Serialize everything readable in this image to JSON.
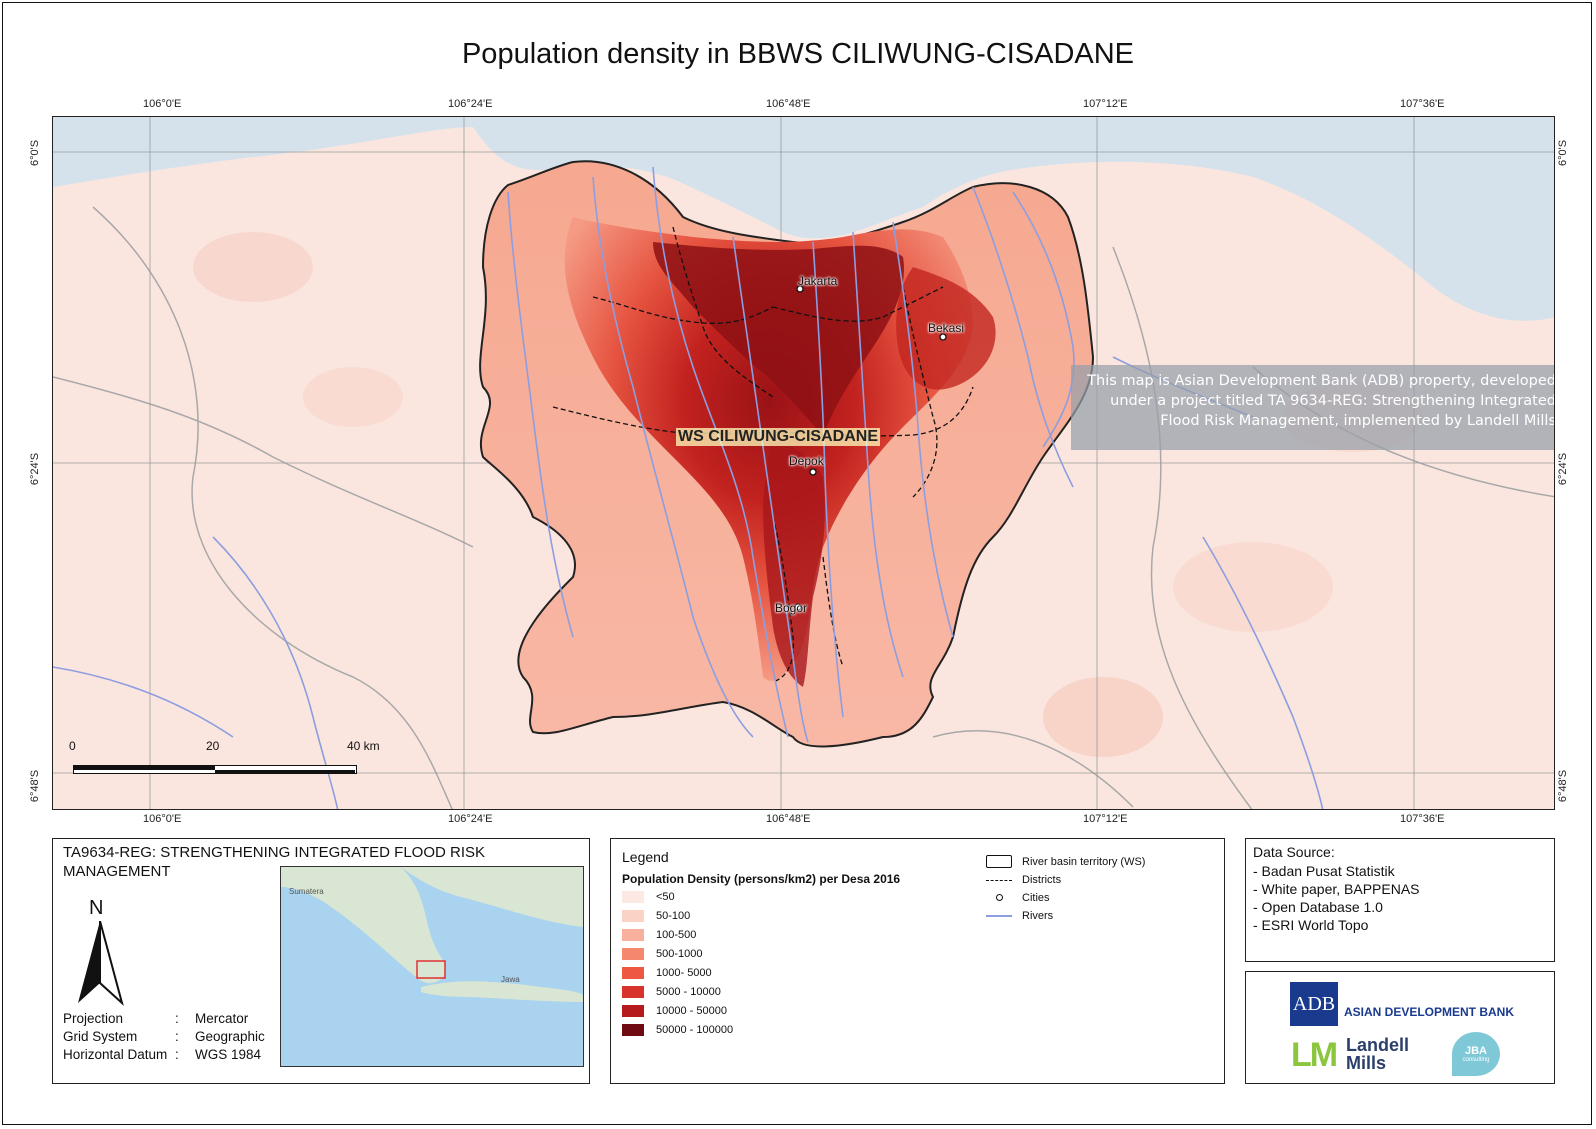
{
  "title": "Population density in BBWS CILIWUNG-CISADANE",
  "map": {
    "lon_ticks": [
      "106°0'E",
      "106°24'E",
      "106°48'E",
      "107°12'E",
      "107°36'E"
    ],
    "lat_ticks": [
      "6°0'S",
      "6°24'S",
      "6°48'S"
    ],
    "cities": [
      "Jakarta",
      "Bekasi",
      "Depok",
      "Bogor"
    ],
    "basin_label": "WS CILIWUNG-CISADANE",
    "notice": [
      "This map is Asian Development Bank (ADB) property, developed",
      "under a project titled TA 9634-REG: Strengthening Integrated",
      "Flood Risk Management, implemented by Landell Mills"
    ],
    "scale_labels": [
      "0",
      "20",
      "40 km"
    ]
  },
  "info_panel": {
    "title": "TA9634-REG: STRENGTHENING INTEGRATED FLOOD RISK MANAGEMENT",
    "north_label": "N",
    "projection": [
      {
        "key": "Projection",
        "value": "Mercator"
      },
      {
        "key": "Grid System",
        "value": "Geographic"
      },
      {
        "key": "Horizontal Datum",
        "value": "WGS 1984"
      }
    ],
    "inset_labels": [
      "Sumatera",
      "Jawa"
    ]
  },
  "legend": {
    "title": "Legend",
    "subtitle": "Population Density (persons/km2) per Desa 2016",
    "classes": [
      {
        "label": "<50",
        "color": "#fde9e4"
      },
      {
        "label": "50-100",
        "color": "#fbd3c6"
      },
      {
        "label": "100-500",
        "color": "#f7b09c"
      },
      {
        "label": "500-1000",
        "color": "#f4876c"
      },
      {
        "label": "1000- 5000",
        "color": "#ee5842"
      },
      {
        "label": "5000 - 10000",
        "color": "#d8332b"
      },
      {
        "label": "10000 - 50000",
        "color": "#b51a1c"
      },
      {
        "label": "50000 - 100000",
        "color": "#6d0b10"
      }
    ],
    "symbols": [
      "River basin territory (WS)",
      "Districts",
      "Cities",
      "Rivers"
    ]
  },
  "data_source": {
    "title": "Data Source:",
    "items": [
      "- Badan Pusat Statistik",
      "- White paper, BAPPENAS",
      "- Open Database 1.0",
      "- ESRI World Topo"
    ]
  },
  "logos": {
    "adb": "ADB",
    "adb_name": "ASIAN DEVELOPMENT BANK",
    "lm_line1": "Landell",
    "lm_line2": "Mills",
    "jba": "JBA",
    "jba_sub": "consulting"
  },
  "colors": {
    "river": "#8c9ee0",
    "sea": "#d6e4ee",
    "boundary": "#222222"
  }
}
